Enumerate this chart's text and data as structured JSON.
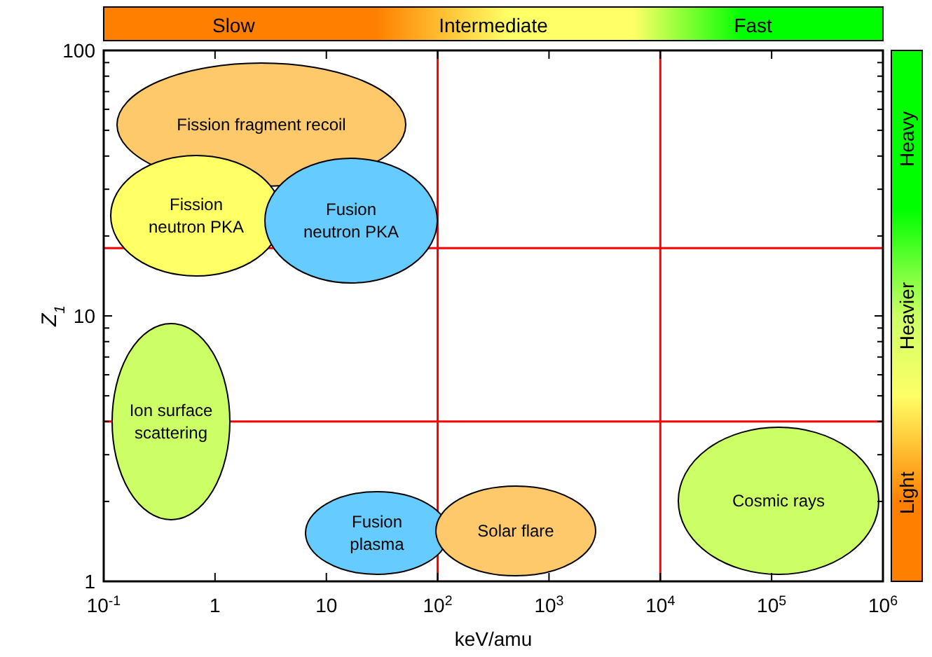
{
  "chart_data": {
    "type": "scatter",
    "xlabel": "keV/amu",
    "ylabel": "Z$_{1}$",
    "log": "xy",
    "xlim": [
      0.1,
      1000000
    ],
    "ylim": [
      1,
      100
    ],
    "xticks": [
      {
        "value": 0.1,
        "label": "10$^{-1}$"
      },
      1,
      10,
      {
        "value": 100,
        "label": "10$^{2}$"
      },
      {
        "value": 1000,
        "label": "10$^{3}$"
      },
      {
        "value": 10000,
        "label": "10$^{4}$"
      },
      {
        "value": 100000,
        "label": "10$^{5}$"
      },
      {
        "value": 1000000,
        "label": "10$^{6}$"
      }
    ],
    "yticks": [
      1,
      {
        "value": 2,
        "label": null
      },
      {
        "value": 3,
        "label": null
      },
      {
        "value": 4,
        "label": null
      },
      {
        "value": 5,
        "label": null
      },
      {
        "value": 6,
        "label": null
      },
      {
        "value": 7,
        "label": null
      },
      {
        "value": 8,
        "label": null
      },
      {
        "value": 9,
        "label": null
      },
      10,
      {
        "value": 20,
        "label": null
      },
      {
        "value": 30,
        "label": null
      },
      {
        "value": 40,
        "label": null
      },
      {
        "value": 50,
        "label": null
      },
      {
        "value": 60,
        "label": null
      },
      {
        "value": 70,
        "label": null
      },
      {
        "value": 80,
        "label": null
      },
      {
        "value": 90,
        "label": null
      },
      100
    ],
    "ref_lines": [
      {
        "axis": "x",
        "value": 100,
        "color": "#ff0000"
      },
      {
        "axis": "x",
        "value": 10000,
        "color": "#ff0000"
      },
      {
        "axis": "y",
        "value": 4,
        "color": "#ff0000"
      },
      {
        "axis": "y",
        "value": 18,
        "color": "#ff0000"
      }
    ],
    "annotations": [
      "Slow",
      "Intermediate",
      "Fast",
      "Heavy",
      "Heavier",
      "Light",
      "Fission fragment recoil",
      "Fission neutron PKA",
      "Fusion neutron PKA",
      "Ion surface scattering",
      "Fusion plasma",
      "Solar flare",
      "Cosmic rays"
    ]
  }
}
